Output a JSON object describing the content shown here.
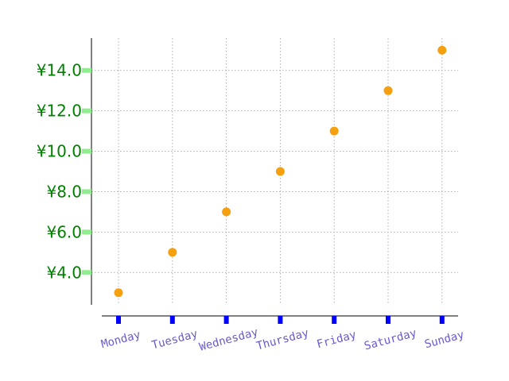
{
  "chart_data": {
    "type": "scatter",
    "categories": [
      "Monday",
      "Tuesday",
      "Wednesday",
      "Thursday",
      "Friday",
      "Saturday",
      "Sunday"
    ],
    "values": [
      3,
      5,
      7,
      9,
      11,
      13,
      15
    ],
    "ylim": [
      2.4,
      15.6
    ],
    "yticks": [
      4,
      6,
      8,
      10,
      12,
      14
    ],
    "ytick_labels": [
      "¥4.0",
      "¥6.0",
      "¥8.0",
      "¥10.0",
      "¥12.0",
      "¥14.0"
    ],
    "grid": true,
    "title": "",
    "xlabel": "",
    "ylabel": "",
    "colors": {
      "marker": "#f5a00f",
      "grid": "#b0b0b0",
      "axis": "#000000",
      "ytick_mark": "#90ee90",
      "ytick_label": "#008000",
      "xtick_mark": "#0000ff",
      "xtick_label": "#6a5acd"
    }
  }
}
